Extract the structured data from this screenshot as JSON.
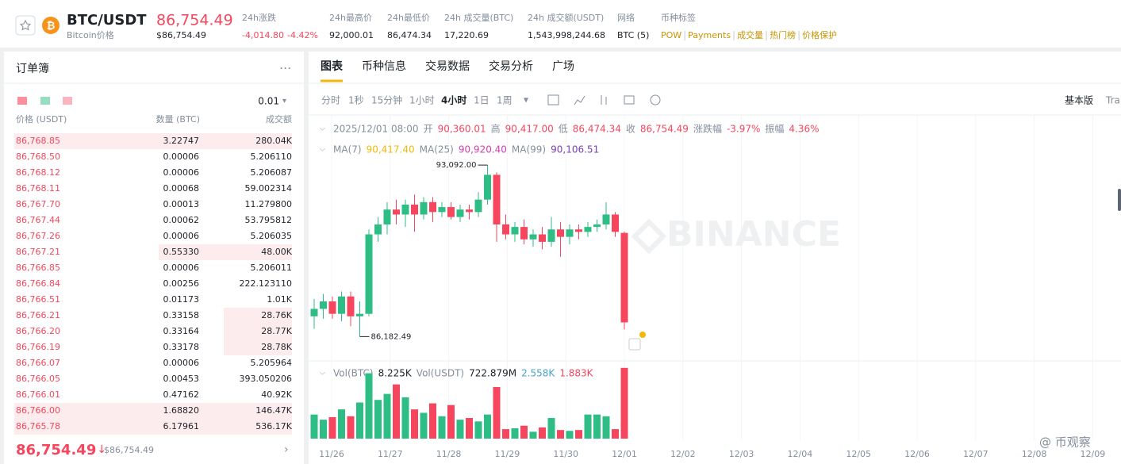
{
  "header": {
    "symbol": "BTC/USDT",
    "name": "Bitcoin价格",
    "price": "86,754.49",
    "price_usd": "$86,754.49",
    "change_label": "24h涨跌",
    "change": "-4,014.80",
    "change_pct": "-4.42%",
    "stats": [
      {
        "label": "24h最高价",
        "value": "92,000.01"
      },
      {
        "label": "24h最低价",
        "value": "86,474.34"
      },
      {
        "label": "24h 成交量(BTC)",
        "value": "17,220.69"
      },
      {
        "label": "24h 成交额(USDT)",
        "value": "1,543,998,244.68"
      },
      {
        "label": "网络",
        "value": "BTC (5)"
      }
    ],
    "tags_label": "币种标签",
    "tags": [
      "POW",
      "Payments",
      "成交量",
      "热门榜",
      "价格保护"
    ]
  },
  "orderbook": {
    "title": "订单簿",
    "step": "0.01",
    "columns": [
      "价格 (USDT)",
      "数量 (BTC)",
      "成交额"
    ],
    "rows": [
      [
        "86,768.85",
        "3.22747",
        "280.04K"
      ],
      [
        "86,768.50",
        "0.00006",
        "5.206110"
      ],
      [
        "86,768.12",
        "0.00006",
        "5.206087"
      ],
      [
        "86,768.11",
        "0.00068",
        "59.002314"
      ],
      [
        "86,767.70",
        "0.00013",
        "11.279800"
      ],
      [
        "86,767.44",
        "0.00062",
        "53.795812"
      ],
      [
        "86,767.26",
        "0.00006",
        "5.206035"
      ],
      [
        "86,767.21",
        "0.55330",
        "48.00K"
      ],
      [
        "86,766.85",
        "0.00006",
        "5.206011"
      ],
      [
        "86,766.84",
        "0.00256",
        "222.123110"
      ],
      [
        "86,766.51",
        "0.01173",
        "1.01K"
      ],
      [
        "86,766.21",
        "0.33158",
        "28.76K"
      ],
      [
        "86,766.20",
        "0.33164",
        "28.77K"
      ],
      [
        "86,766.19",
        "0.33178",
        "28.78K"
      ],
      [
        "86,766.07",
        "0.00006",
        "5.205964"
      ],
      [
        "86,766.05",
        "0.00453",
        "393.050206"
      ],
      [
        "86,766.01",
        "0.47162",
        "40.92K"
      ],
      [
        "86,766.00",
        "1.68820",
        "146.47K"
      ],
      [
        "86,765.78",
        "6.17961",
        "536.17K"
      ]
    ],
    "last_price": "86,754.49",
    "last_arrow": "↓",
    "last_price_usd": "$86,754.49"
  },
  "tabs": [
    "图表",
    "币种信息",
    "交易数据",
    "交易分析",
    "广场"
  ],
  "intervals": [
    "分时",
    "1秒",
    "15分钟",
    "1小时",
    "4小时",
    "1日",
    "1周"
  ],
  "views": [
    "基本版",
    "Tra"
  ],
  "watermark_user": "@ 币观察",
  "chart_data": {
    "type": "candlestick",
    "info": [
      "2025/12/01 08:00",
      "开",
      "90,360.01",
      "高",
      "90,417.00",
      "低",
      "86,474.34",
      "收",
      "86,754.49",
      "涨跌幅",
      "-3.97%",
      "振幅",
      "4.36%"
    ],
    "ma": [
      "MA(7)",
      "90,417.40",
      "MA(25)",
      "90,920.40",
      "MA(99)",
      "90,106.51"
    ],
    "vol": [
      "Vol(BTC)",
      "8.225K",
      "Vol(USDT)",
      "722.879M",
      "2.558K",
      "1.883K"
    ],
    "watermark": "BINANCE",
    "high_label": "93,092.00",
    "low_label": "86,182.49",
    "xticks": [
      "11/26",
      "11/27",
      "11/28",
      "11/29",
      "11/30",
      "12/01",
      "12/02",
      "12/03",
      "12/04",
      "12/05",
      "12/06",
      "12/07",
      "12/08",
      "12/09"
    ],
    "ylim": [
      85300,
      94150
    ],
    "vol_ylim": [
      0,
      8.3
    ],
    "open": [
      87000,
      87300,
      87600,
      87100,
      87800,
      87000,
      87100,
      90300,
      90700,
      91300,
      91100,
      91500,
      91100,
      91600,
      91200,
      91400,
      91000,
      91300,
      91200,
      91700,
      92700,
      90700,
      90300,
      90600,
      90100,
      90300,
      90000,
      90500,
      90200,
      90500,
      90400,
      90600,
      90700,
      91100,
      90360.01
    ],
    "close": [
      87300,
      87600,
      87100,
      87800,
      87000,
      87100,
      90300,
      90700,
      91300,
      91100,
      91500,
      91100,
      91600,
      91200,
      91400,
      91000,
      91300,
      91200,
      91700,
      92700,
      90700,
      90300,
      90600,
      90100,
      90300,
      90000,
      90500,
      90200,
      90500,
      90400,
      90600,
      90700,
      91100,
      90400,
      86754.49
    ],
    "high": [
      87700,
      87900,
      87800,
      88000,
      88000,
      87600,
      90500,
      91000,
      91600,
      91700,
      91700,
      91900,
      91800,
      91800,
      91600,
      91600,
      91500,
      91500,
      92000,
      93092,
      92800,
      91100,
      90800,
      90900,
      90500,
      90600,
      91000,
      90800,
      90700,
      90700,
      90800,
      90900,
      91600,
      91200,
      90417
    ],
    "low": [
      86500,
      86900,
      86900,
      86800,
      86600,
      86182.49,
      87000,
      90000,
      90300,
      90700,
      90600,
      90400,
      90900,
      90800,
      91000,
      90900,
      90800,
      90900,
      91000,
      91500,
      90000,
      90100,
      90000,
      89900,
      89800,
      89700,
      89800,
      89400,
      89900,
      90100,
      90200,
      90400,
      90500,
      90200,
      86474.34
    ],
    "volume": [
      2.8,
      2.2,
      2.5,
      3.4,
      2.6,
      4.2,
      7.6,
      4.5,
      5.2,
      6.3,
      4.8,
      3.4,
      3.0,
      4.1,
      2.6,
      3.9,
      2.2,
      2.4,
      2.0,
      2.8,
      6.0,
      1.1,
      1.2,
      1.5,
      0.8,
      1.3,
      2.4,
      1.0,
      0.9,
      1.0,
      2.8,
      2.8,
      2.6,
      1.1,
      8.225
    ]
  }
}
